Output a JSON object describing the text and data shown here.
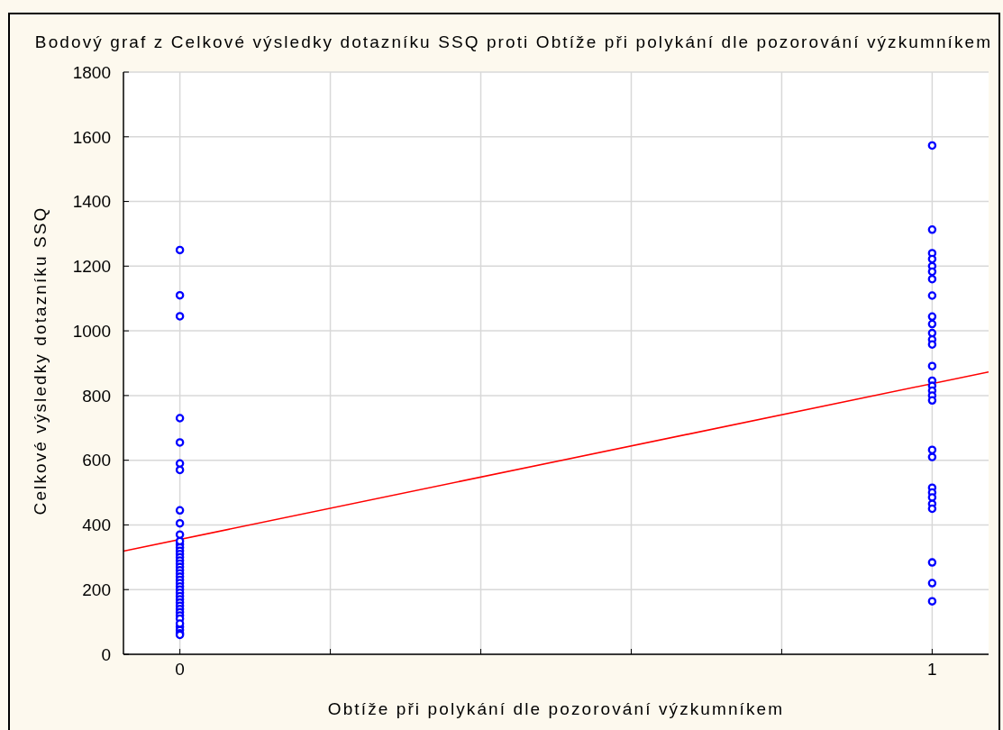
{
  "chart_data": {
    "type": "scatter",
    "title": "Bodový graf z Celkové výsledky dotazníku SSQ proti Obtíže při polykání dle pozorování výzkumníkem",
    "xlabel": "Obtíže při polykání dle pozorování výzkumníkem",
    "ylabel": "Celkové výsledky dotazníku SSQ",
    "xlim": [
      -0.075,
      1.075
    ],
    "xticks": [
      0,
      {
        "value": 0.2,
        "label": null
      },
      {
        "value": 0.4,
        "label": null
      },
      {
        "value": 0.6,
        "label": null
      },
      {
        "value": 0.8,
        "label": null
      },
      1
    ],
    "ylim": [
      0,
      1800
    ],
    "yticks": [
      0,
      200,
      400,
      600,
      800,
      1000,
      1200,
      1400,
      1600,
      1800
    ],
    "grid": true,
    "series": [
      {
        "color": "#0000ff",
        "marker": "circle",
        "x": [
          0,
          0,
          0,
          0,
          0,
          0,
          0,
          0,
          0,
          0,
          0,
          0,
          0,
          0,
          0,
          0,
          0,
          0,
          0,
          0,
          0,
          0,
          0,
          0,
          0,
          0,
          0,
          0,
          0,
          0,
          0,
          0,
          0,
          0,
          0,
          0,
          0,
          0,
          0,
          0,
          1,
          1,
          1,
          1,
          1,
          1,
          1,
          1,
          1,
          1,
          1,
          1,
          1,
          1,
          1,
          1,
          1,
          1,
          1,
          1,
          1,
          1,
          1,
          1,
          1,
          1,
          1,
          1,
          1
        ],
        "values": [
          1250,
          1110,
          1045,
          730,
          655,
          590,
          570,
          445,
          405,
          370,
          340,
          330,
          320,
          310,
          300,
          290,
          280,
          270,
          260,
          250,
          240,
          230,
          220,
          210,
          200,
          190,
          180,
          170,
          160,
          150,
          140,
          130,
          120,
          110,
          85,
          75,
          65,
          60,
          350,
          95,
          1573,
          1313,
          1240,
          1222,
          1200,
          1183,
          1160,
          1109,
          1044,
          1021,
          993,
          973,
          958,
          891,
          846,
          830,
          815,
          800,
          785,
          632,
          610,
          515,
          500,
          485,
          465,
          450,
          284,
          220,
          164
        ]
      },
      {
        "type": "line",
        "color": "#ff0000",
        "line_style": "solid",
        "x": [
          -0.075,
          1.075
        ],
        "values": [
          319,
          873
        ]
      }
    ]
  }
}
